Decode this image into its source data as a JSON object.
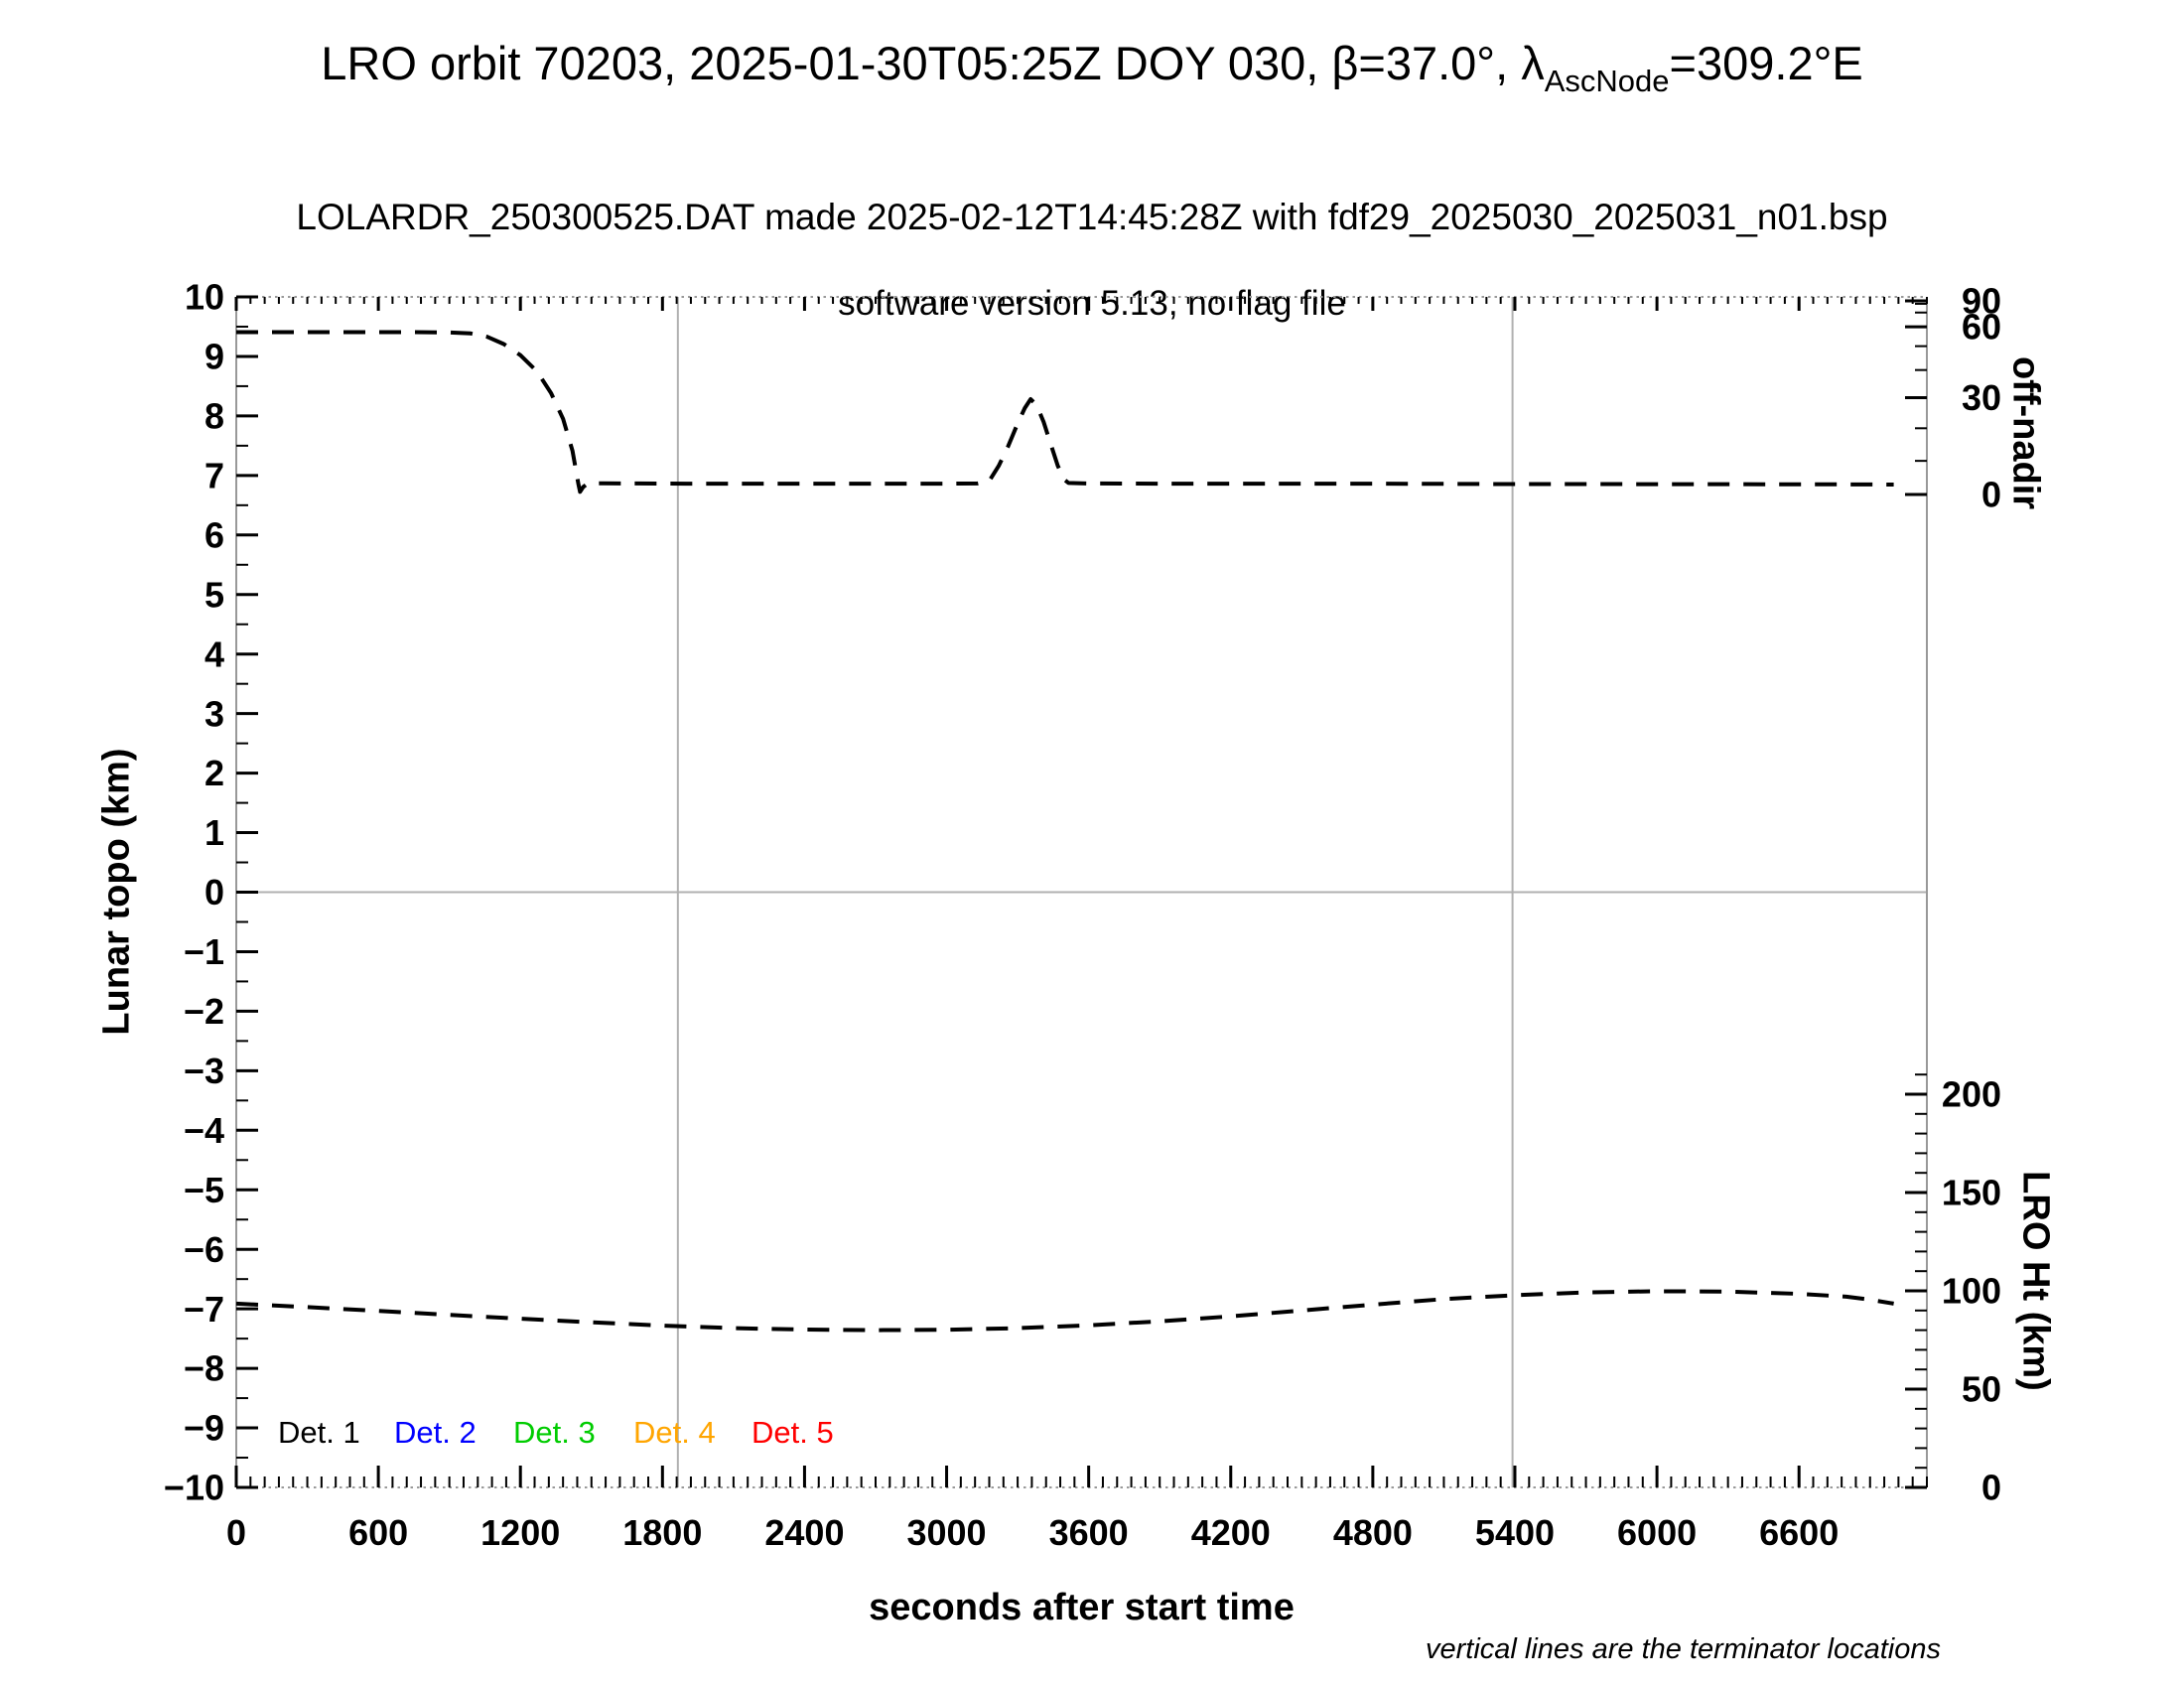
{
  "header": {
    "title_prefix": "LRO orbit 70203, 2025-01-30T05:25Z DOY 030, β=37.0°, λ",
    "title_subscript": "AscNode",
    "title_suffix": "=309.2°E",
    "subtitle_file": "LOLARDR_250300525.DAT made 2025-02-12T14:45:28Z with fdf29_2025030_2025031_n01.bsp",
    "subtitle_version": "software version 5.13, no flag file"
  },
  "footnote": "vertical lines are the terminator locations",
  "axes": {
    "x": {
      "label": "seconds after start time",
      "min": 0,
      "max": 7140,
      "major_tick_step": 600,
      "minor_tick_step": 60,
      "tick_labels": [
        0,
        600,
        1200,
        1800,
        2400,
        3000,
        3600,
        4200,
        4800,
        5400,
        6000,
        6600
      ]
    },
    "y_left": {
      "label": "Lunar topo (km)",
      "min": -10,
      "max": 10,
      "major_tick_step": 1,
      "minor_tick_step": 0.5
    },
    "y_right_top": {
      "label": "off-nadir",
      "unit": "deg",
      "scale": "sine",
      "tick_labels": [
        90,
        60,
        30,
        0
      ],
      "minor_ticks": [
        80,
        70,
        50,
        40,
        20,
        10
      ]
    },
    "y_right_bottom": {
      "label": "LRO Ht (km)",
      "tick_labels": [
        200,
        150,
        100,
        50,
        0
      ],
      "minor_tick_step": 10,
      "minor_tick_max": 210
    }
  },
  "legend": {
    "items": [
      {
        "label": "Det. 1",
        "color": "#000000"
      },
      {
        "label": "Det. 2",
        "color": "#0000ff"
      },
      {
        "label": "Det. 3",
        "color": "#00cc00"
      },
      {
        "label": "Det. 4",
        "color": "#ffa500"
      },
      {
        "label": "Det. 5",
        "color": "#ff0000"
      }
    ]
  },
  "colors": {
    "curve": "#000000",
    "frame": "#999999",
    "tick": "#000000",
    "guide_lines": "#b0b0b0"
  },
  "chart_data": {
    "type": "line",
    "x_unit": "seconds after start time",
    "terminator_lines_s": [
      1865,
      5390
    ],
    "zero_topo_gridline_km": 0,
    "series": [
      {
        "name": "spacecraft off-nadir angle",
        "axis": "right-top",
        "unit": "deg",
        "line_style": "dashed",
        "color": "#000000",
        "points": [
          [
            0,
            57
          ],
          [
            150,
            57
          ],
          [
            300,
            57
          ],
          [
            450,
            57
          ],
          [
            600,
            57
          ],
          [
            750,
            57
          ],
          [
            900,
            56.8
          ],
          [
            990,
            56.3
          ],
          [
            1060,
            54.5
          ],
          [
            1130,
            51
          ],
          [
            1200,
            46
          ],
          [
            1270,
            39.5
          ],
          [
            1330,
            31.5
          ],
          [
            1380,
            23
          ],
          [
            1420,
            13
          ],
          [
            1445,
            3
          ],
          [
            1452,
            0.8
          ],
          [
            1465,
            2.2
          ],
          [
            1485,
            3.3
          ],
          [
            1550,
            3.3
          ],
          [
            1700,
            3.25
          ],
          [
            1900,
            3.2
          ],
          [
            2100,
            3.2
          ],
          [
            2400,
            3.2
          ],
          [
            2700,
            3.2
          ],
          [
            3000,
            3.2
          ],
          [
            3130,
            3.25
          ],
          [
            3180,
            4
          ],
          [
            3220,
            8.5
          ],
          [
            3260,
            14.5
          ],
          [
            3300,
            21.5
          ],
          [
            3330,
            26.5
          ],
          [
            3355,
            29.5
          ],
          [
            3380,
            27.5
          ],
          [
            3410,
            22
          ],
          [
            3440,
            15
          ],
          [
            3470,
            8.5
          ],
          [
            3495,
            4.5
          ],
          [
            3515,
            3.4
          ],
          [
            3600,
            3.25
          ],
          [
            3900,
            3.2
          ],
          [
            4200,
            3.2
          ],
          [
            4500,
            3.2
          ],
          [
            4800,
            3.2
          ],
          [
            5100,
            3.15
          ],
          [
            5390,
            3.1
          ],
          [
            5700,
            3.1
          ],
          [
            6000,
            3.05
          ],
          [
            6300,
            3.05
          ],
          [
            6600,
            3.0
          ],
          [
            6800,
            3.0
          ],
          [
            7000,
            2.95
          ]
        ]
      },
      {
        "name": "LRO height",
        "axis": "right-bottom",
        "unit": "km",
        "line_style": "dashed",
        "color": "#000000",
        "points": [
          [
            0,
            93.5
          ],
          [
            300,
            91.7
          ],
          [
            600,
            89.8
          ],
          [
            900,
            87.8
          ],
          [
            1200,
            85.8
          ],
          [
            1500,
            84
          ],
          [
            1800,
            82.3
          ],
          [
            2100,
            81
          ],
          [
            2400,
            80.3
          ],
          [
            2700,
            80
          ],
          [
            3000,
            80.2
          ],
          [
            3300,
            81
          ],
          [
            3600,
            82.5
          ],
          [
            3900,
            84.5
          ],
          [
            4200,
            87
          ],
          [
            4500,
            90
          ],
          [
            4800,
            93
          ],
          [
            5100,
            95.8
          ],
          [
            5400,
            97.8
          ],
          [
            5700,
            99.2
          ],
          [
            6000,
            99.8
          ],
          [
            6300,
            99.6
          ],
          [
            6600,
            98.5
          ],
          [
            6800,
            97
          ],
          [
            6900,
            95.5
          ],
          [
            7000,
            93.5
          ]
        ]
      }
    ]
  }
}
